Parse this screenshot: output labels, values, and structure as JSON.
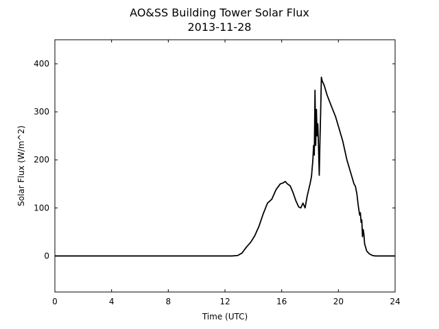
{
  "chart_data": {
    "type": "line",
    "title": "AO&SS Building Tower Solar Flux",
    "subtitle": "2013-11-28",
    "xlabel": "Time (UTC)",
    "ylabel": "Solar Flux (W/m^2)",
    "xlim": [
      0,
      24
    ],
    "ylim": [
      -75,
      450
    ],
    "xticks": [
      0,
      4,
      8,
      12,
      16,
      20,
      24
    ],
    "yticks": [
      0,
      100,
      200,
      300,
      400
    ],
    "grid": false,
    "series": [
      {
        "color": "#000000",
        "x": [
          0,
          12.5,
          12.9,
          13.2,
          13.5,
          13.8,
          14.1,
          14.4,
          14.7,
          15.0,
          15.3,
          15.6,
          15.9,
          16.1,
          16.25,
          16.4,
          16.6,
          16.8,
          17.0,
          17.2,
          17.35,
          17.5,
          17.65,
          17.8,
          18.0,
          18.1,
          18.2,
          18.25,
          18.3,
          18.35,
          18.4,
          18.45,
          18.5,
          18.55,
          18.6,
          18.65,
          18.7,
          18.75,
          18.8,
          18.85,
          19.0,
          19.2,
          19.5,
          19.8,
          20.0,
          20.3,
          20.6,
          20.9,
          21.1,
          21.2,
          21.3,
          21.4,
          21.5,
          21.55,
          21.6,
          21.65,
          21.7,
          21.75,
          21.8,
          21.85,
          21.9,
          21.95,
          22.0,
          22.2,
          22.4,
          22.6,
          22.8,
          24
        ],
        "y": [
          0,
          0,
          1,
          6,
          18,
          28,
          42,
          62,
          88,
          110,
          118,
          138,
          150,
          152,
          155,
          150,
          146,
          132,
          115,
          102,
          100,
          110,
          100,
          125,
          150,
          165,
          200,
          230,
          210,
          345,
          230,
          305,
          250,
          275,
          225,
          168,
          240,
          300,
          372,
          365,
          355,
          335,
          312,
          290,
          270,
          240,
          200,
          170,
          150,
          145,
          130,
          105,
          85,
          90,
          70,
          75,
          40,
          55,
          45,
          25,
          20,
          15,
          10,
          4,
          1,
          0,
          0,
          0
        ]
      }
    ]
  }
}
